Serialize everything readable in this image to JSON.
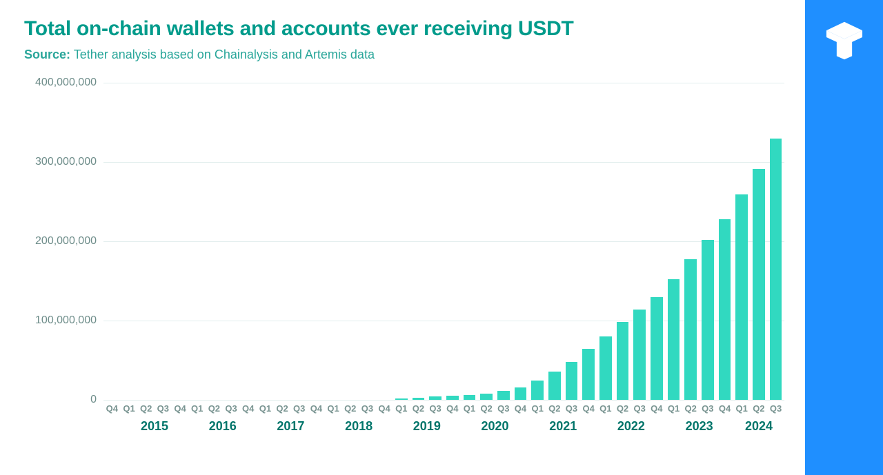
{
  "title": "Total on-chain wallets and accounts ever receiving USDT",
  "source_label": "Source:",
  "source_text": " Tether analysis based on Chainalysis and Artemis data",
  "colors": {
    "title": "#009b8b",
    "source": "#2aa69a",
    "bar": "#31d9c0",
    "gridline": "#e2eeed",
    "ytick": "#6e8d8a",
    "xtick": "#7a9592",
    "year": "#00756a",
    "sidebar": "#1f8fff",
    "logo": "#ffffff",
    "background": "#ffffff"
  },
  "chart": {
    "type": "bar",
    "ymax": 400000000,
    "yticks": [
      0,
      100000000,
      200000000,
      300000000,
      400000000
    ],
    "ytick_labels": [
      "0",
      "100,000,000",
      "200,000,000",
      "300,000,000",
      "400,000,000"
    ],
    "bar_width_ratio": 0.72,
    "values": [
      0,
      0,
      0,
      0,
      0,
      0,
      0,
      0,
      0,
      0,
      0,
      0,
      0,
      0,
      0,
      0,
      0,
      1500000,
      3000000,
      4000000,
      5000000,
      6500000,
      8000000,
      11000000,
      16000000,
      24000000,
      36000000,
      48000000,
      64000000,
      80000000,
      98000000,
      114000000,
      130000000,
      152000000,
      177000000,
      202000000,
      228000000,
      259000000,
      291000000,
      330000000
    ],
    "x_quarters": [
      "Q4",
      "Q1",
      "Q2",
      "Q3",
      "Q4",
      "Q1",
      "Q2",
      "Q3",
      "Q4",
      "Q1",
      "Q2",
      "Q3",
      "Q4",
      "Q1",
      "Q2",
      "Q3",
      "Q4",
      "Q1",
      "Q2",
      "Q3",
      "Q4",
      "Q1",
      "Q2",
      "Q3",
      "Q4",
      "Q1",
      "Q2",
      "Q3",
      "Q4",
      "Q1",
      "Q2",
      "Q3",
      "Q4",
      "Q1",
      "Q2",
      "Q3",
      "Q4",
      "Q1",
      "Q2",
      "Q3"
    ],
    "years": [
      {
        "label": "2015",
        "center_index": 2.5
      },
      {
        "label": "2016",
        "center_index": 6.5
      },
      {
        "label": "2017",
        "center_index": 10.5
      },
      {
        "label": "2018",
        "center_index": 14.5
      },
      {
        "label": "2019",
        "center_index": 18.5
      },
      {
        "label": "2020",
        "center_index": 22.5
      },
      {
        "label": "2021",
        "center_index": 26.5
      },
      {
        "label": "2022",
        "center_index": 30.5
      },
      {
        "label": "2023",
        "center_index": 34.5
      },
      {
        "label": "2024",
        "center_index": 38
      }
    ]
  }
}
